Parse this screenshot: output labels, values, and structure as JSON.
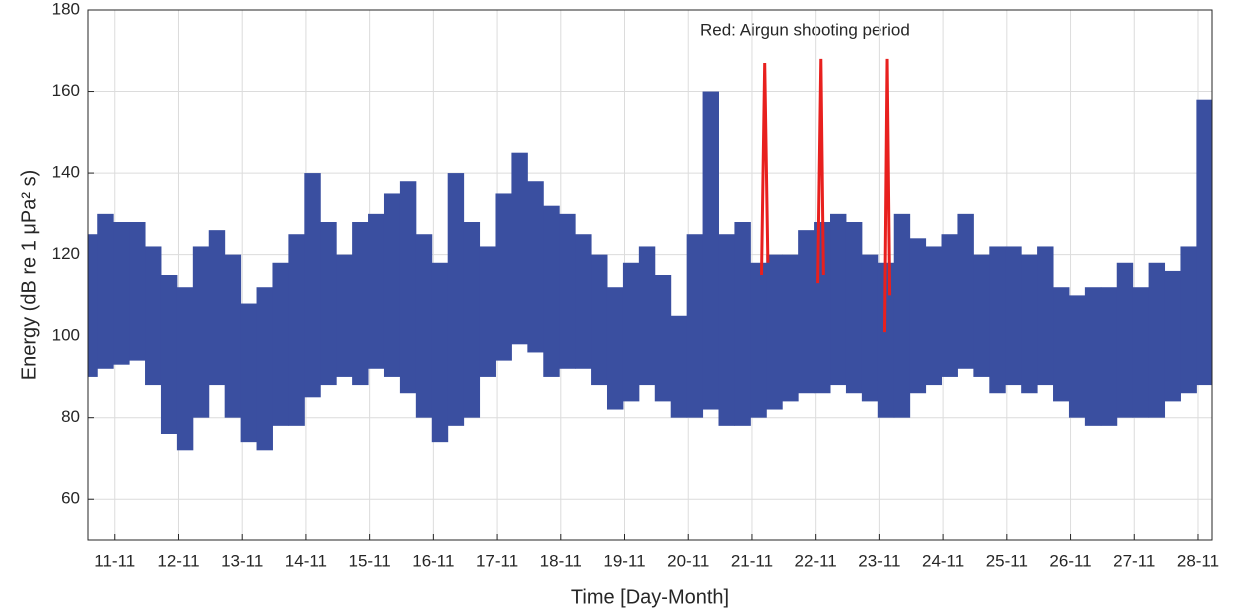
{
  "chart_data": {
    "type": "range",
    "annotation": "Red: Airgun shooting period",
    "xlabel": "Time [Day-Month]",
    "ylabel": "Energy (dB re 1 μPa² s)",
    "xlim": [
      10.58,
      28.22
    ],
    "ylim": [
      50,
      180
    ],
    "yticks": [
      60,
      80,
      100,
      120,
      140,
      160,
      180
    ],
    "xticks": [
      {
        "value": 11,
        "label": "11-11"
      },
      {
        "value": 12,
        "label": "12-11"
      },
      {
        "value": 13,
        "label": "13-11"
      },
      {
        "value": 14,
        "label": "14-11"
      },
      {
        "value": 15,
        "label": "15-11"
      },
      {
        "value": 16,
        "label": "16-11"
      },
      {
        "value": 17,
        "label": "17-11"
      },
      {
        "value": 18,
        "label": "18-11"
      },
      {
        "value": 19,
        "label": "19-11"
      },
      {
        "value": 20,
        "label": "20-11"
      },
      {
        "value": 21,
        "label": "21-11"
      },
      {
        "value": 22,
        "label": "22-11"
      },
      {
        "value": 23,
        "label": "23-11"
      },
      {
        "value": 24,
        "label": "24-11"
      },
      {
        "value": 25,
        "label": "25-11"
      },
      {
        "value": 26,
        "label": "26-11"
      },
      {
        "value": 27,
        "label": "27-11"
      },
      {
        "value": 28,
        "label": "28-11"
      }
    ],
    "grid": true,
    "color": "#3a4fa0",
    "x": [
      10.6,
      10.85,
      11.1,
      11.35,
      11.6,
      11.85,
      12.1,
      12.35,
      12.6,
      12.85,
      13.1,
      13.35,
      13.6,
      13.85,
      14.1,
      14.35,
      14.6,
      14.85,
      15.1,
      15.35,
      15.6,
      15.85,
      16.1,
      16.35,
      16.6,
      16.85,
      17.1,
      17.35,
      17.6,
      17.85,
      18.1,
      18.35,
      18.6,
      18.85,
      19.1,
      19.35,
      19.6,
      19.85,
      20.1,
      20.35,
      20.6,
      20.85,
      21.1,
      21.35,
      21.6,
      21.85,
      22.1,
      22.35,
      22.6,
      22.85,
      23.1,
      23.35,
      23.6,
      23.85,
      24.1,
      24.35,
      24.6,
      24.85,
      25.1,
      25.35,
      25.6,
      25.85,
      26.1,
      26.35,
      26.6,
      26.85,
      27.1,
      27.35,
      27.6,
      27.85,
      28.1
    ],
    "high": [
      125,
      130,
      128,
      128,
      122,
      115,
      112,
      122,
      126,
      120,
      108,
      112,
      118,
      125,
      140,
      128,
      120,
      128,
      130,
      135,
      138,
      125,
      118,
      140,
      128,
      122,
      135,
      145,
      138,
      132,
      130,
      125,
      120,
      112,
      118,
      122,
      115,
      105,
      125,
      160,
      125,
      128,
      118,
      120,
      120,
      126,
      128,
      130,
      128,
      120,
      118,
      130,
      124,
      122,
      125,
      130,
      120,
      122,
      122,
      120,
      122,
      112,
      110,
      112,
      112,
      118,
      112,
      118,
      116,
      122,
      158
    ],
    "low": [
      90,
      92,
      93,
      94,
      88,
      76,
      72,
      80,
      88,
      80,
      74,
      72,
      78,
      78,
      85,
      88,
      90,
      88,
      92,
      90,
      86,
      80,
      74,
      78,
      80,
      90,
      94,
      98,
      96,
      90,
      92,
      92,
      88,
      82,
      84,
      88,
      84,
      80,
      80,
      82,
      78,
      78,
      80,
      82,
      84,
      86,
      86,
      88,
      86,
      84,
      80,
      80,
      86,
      88,
      90,
      92,
      90,
      86,
      88,
      86,
      88,
      84,
      80,
      78,
      78,
      80,
      80,
      80,
      84,
      86,
      88
    ],
    "airgun": {
      "color": "#e8201e",
      "segments": [
        {
          "x": [
            21.15,
            21.2,
            21.25
          ],
          "values": [
            115,
            167,
            118
          ]
        },
        {
          "x": [
            22.03,
            22.08,
            22.12
          ],
          "values": [
            113,
            168,
            115
          ]
        },
        {
          "x": [
            23.08,
            23.12,
            23.16
          ],
          "values": [
            101,
            168,
            110
          ]
        }
      ]
    }
  }
}
